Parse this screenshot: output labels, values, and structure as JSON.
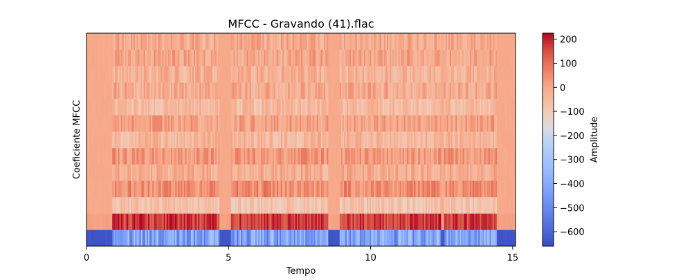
{
  "chart_data": {
    "type": "heatmap",
    "title": "MFCC - Gravando (41).flac",
    "xlabel": "Tempo",
    "ylabel": "Coeficiente MFCC",
    "xlim": [
      0,
      15.1
    ],
    "x_ticks": [
      0,
      5,
      10,
      15
    ],
    "x_tick_labels": [
      "0",
      "5",
      "10",
      "15"
    ],
    "n_coefficients": 13,
    "colormap": "coolwarm",
    "colorbar": {
      "label": "Amplitude",
      "range": [
        -660,
        225
      ],
      "ticks": [
        200,
        100,
        0,
        -100,
        -200,
        -300,
        -400,
        -500,
        -600
      ],
      "tick_labels": [
        "200",
        "100",
        "0",
        "−100",
        "−200",
        "−300",
        "−400",
        "−500",
        "−600"
      ]
    },
    "silence_levels": [
      -640,
      15,
      0,
      0,
      0,
      0,
      0,
      0,
      0,
      0,
      0,
      0,
      0
    ],
    "voiced_levels": [
      -420,
      170,
      -80,
      50,
      -20,
      30,
      -40,
      10,
      -50,
      -10,
      -30,
      0,
      -10
    ],
    "voiced_segments": [
      [
        0.9,
        4.7
      ],
      [
        5.1,
        8.5
      ],
      [
        8.9,
        12.5
      ],
      [
        12.6,
        14.45
      ]
    ]
  }
}
